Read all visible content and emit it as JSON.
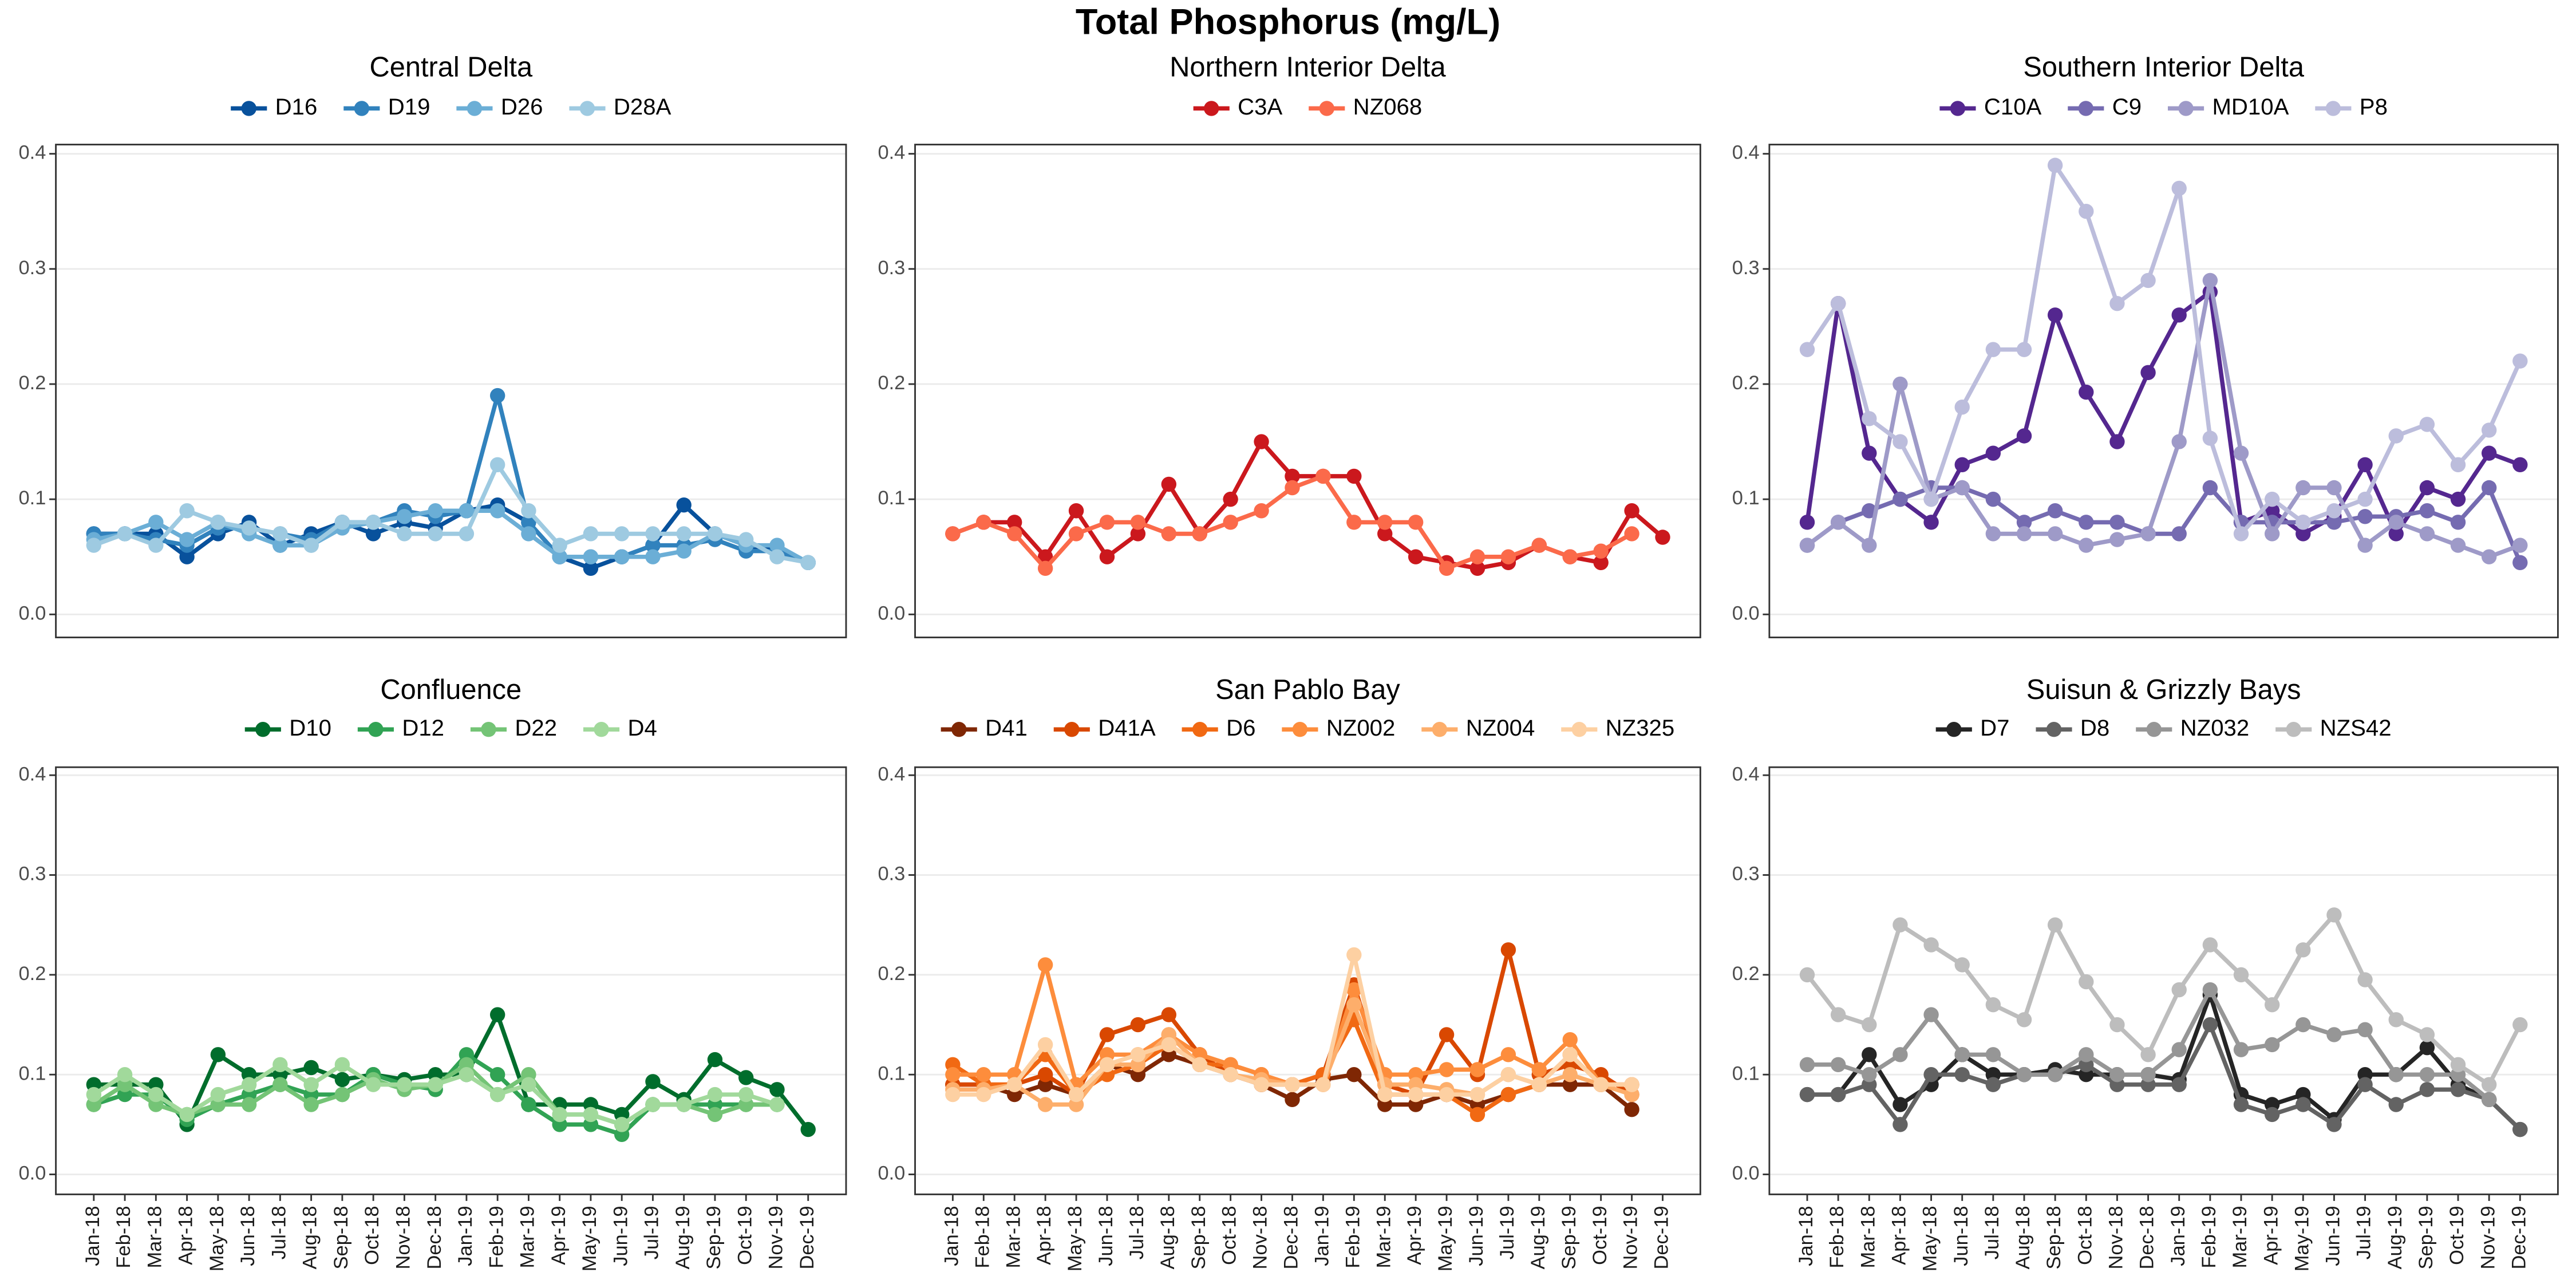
{
  "title": "Total Phosphorus (mg/L)",
  "chart_data": [
    {
      "type": "line",
      "title": "Central Delta",
      "ylim": [
        -0.02,
        0.408
      ],
      "yticks": [
        {
          "value": 0,
          "label": "0.0"
        },
        0.1,
        0.2,
        0.3,
        0.4
      ],
      "grid": true,
      "series": [
        {
          "name": "D16",
          "color": "#08519c",
          "values": [
            0.07,
            0.07,
            0.07,
            0.05,
            0.07,
            0.08,
            0.06,
            0.07,
            0.08,
            0.07,
            0.08,
            0.075,
            0.09,
            0.095,
            0.08,
            0.05,
            0.04,
            0.05,
            0.06,
            0.095,
            0.07,
            0.06,
            0.055,
            0.045
          ]
        },
        {
          "name": "D19",
          "color": "#3182bd",
          "values": [
            0.07,
            0.07,
            0.065,
            0.06,
            0.075,
            0.075,
            0.07,
            0.065,
            0.08,
            0.08,
            0.09,
            0.085,
            0.09,
            0.19,
            0.08,
            0.05,
            0.05,
            0.05,
            0.06,
            0.06,
            0.065,
            0.055,
            0.055,
            0.045
          ]
        },
        {
          "name": "D26",
          "color": "#6baed6",
          "values": [
            0.065,
            0.07,
            0.08,
            0.065,
            0.08,
            0.07,
            0.06,
            0.06,
            0.075,
            0.08,
            0.085,
            0.09,
            0.09,
            0.09,
            0.07,
            0.05,
            0.05,
            0.05,
            0.05,
            0.055,
            0.07,
            0.06,
            0.06,
            0.045
          ]
        },
        {
          "name": "D28A",
          "color": "#9ecae1",
          "values": [
            0.06,
            0.07,
            0.06,
            0.09,
            0.08,
            0.075,
            0.07,
            0.06,
            0.08,
            0.08,
            0.07,
            0.07,
            0.07,
            0.13,
            0.09,
            0.06,
            0.07,
            0.07,
            0.07,
            0.07,
            0.07,
            0.065,
            0.05,
            0.045
          ]
        }
      ]
    },
    {
      "type": "line",
      "title": "Northern Interior Delta",
      "ylim": [
        -0.02,
        0.408
      ],
      "yticks": [
        {
          "value": 0,
          "label": "0.0"
        },
        0.1,
        0.2,
        0.3,
        0.4
      ],
      "grid": true,
      "series": [
        {
          "name": "C3A",
          "color": "#cb181d",
          "values": [
            0.07,
            0.08,
            0.08,
            0.05,
            0.09,
            0.05,
            0.07,
            0.113,
            0.07,
            0.1,
            0.15,
            0.12,
            0.12,
            0.12,
            0.07,
            0.05,
            0.045,
            0.04,
            0.045,
            0.06,
            0.05,
            0.045,
            0.09,
            0.067
          ]
        },
        {
          "name": "NZ068",
          "color": "#fb6a4a",
          "values": [
            0.07,
            0.08,
            0.07,
            0.04,
            0.07,
            0.08,
            0.08,
            0.07,
            0.07,
            0.08,
            0.09,
            0.11,
            0.12,
            0.08,
            0.08,
            0.08,
            0.04,
            0.05,
            0.05,
            0.06,
            0.05,
            0.055,
            0.07,
            null
          ]
        }
      ]
    },
    {
      "type": "line",
      "title": "Southern Interior Delta",
      "ylim": [
        -0.02,
        0.408
      ],
      "yticks": [
        {
          "value": 0,
          "label": "0.0"
        },
        0.1,
        0.2,
        0.3,
        0.4
      ],
      "grid": true,
      "series": [
        {
          "name": "C10A",
          "color": "#54278f",
          "values": [
            0.08,
            0.27,
            0.14,
            0.1,
            0.08,
            0.13,
            0.14,
            0.155,
            0.26,
            0.193,
            0.15,
            0.21,
            0.26,
            0.28,
            0.08,
            0.09,
            0.07,
            0.085,
            0.13,
            0.07,
            0.11,
            0.1,
            0.14,
            0.13
          ]
        },
        {
          "name": "C9",
          "color": "#756bb1",
          "values": [
            0.06,
            0.08,
            0.09,
            0.1,
            0.11,
            0.11,
            0.1,
            0.08,
            0.09,
            0.08,
            0.08,
            0.07,
            0.07,
            0.11,
            0.08,
            0.08,
            0.08,
            0.08,
            0.085,
            0.085,
            0.09,
            0.08,
            0.11,
            0.045
          ]
        },
        {
          "name": "MD10A",
          "color": "#9e9ac8",
          "values": [
            0.06,
            0.08,
            0.06,
            0.2,
            0.1,
            0.11,
            0.07,
            0.07,
            0.07,
            0.06,
            0.065,
            0.07,
            0.15,
            0.29,
            0.14,
            0.07,
            0.11,
            0.11,
            0.06,
            0.08,
            0.07,
            0.06,
            0.05,
            0.06
          ]
        },
        {
          "name": "P8",
          "color": "#bcbddc",
          "values": [
            0.23,
            0.27,
            0.17,
            0.15,
            0.1,
            0.18,
            0.23,
            0.23,
            0.39,
            0.35,
            0.27,
            0.29,
            0.37,
            0.153,
            0.07,
            0.1,
            0.08,
            0.09,
            0.1,
            0.155,
            0.165,
            0.13,
            0.16,
            0.22
          ]
        }
      ]
    },
    {
      "type": "line",
      "title": "Confluence",
      "ylim": [
        -0.02,
        0.408
      ],
      "yticks": [
        {
          "value": 0,
          "label": "0.0"
        },
        0.1,
        0.2,
        0.3,
        0.4
      ],
      "grid": true,
      "categories": [
        "Jan-18",
        "Feb-18",
        "Mar-18",
        "Apr-18",
        "May-18",
        "Jun-18",
        "Jul-18",
        "Aug-18",
        "Sep-18",
        "Oct-18",
        "Nov-18",
        "Dec-18",
        "Jan-19",
        "Feb-19",
        "Mar-19",
        "Apr-19",
        "May-19",
        "Jun-19",
        "Jul-19",
        "Aug-19",
        "Sep-19",
        "Oct-19",
        "Nov-19",
        "Dec-19"
      ],
      "series": [
        {
          "name": "D10",
          "color": "#006d2c",
          "values": [
            0.09,
            0.09,
            0.09,
            0.05,
            0.12,
            0.1,
            0.1,
            0.107,
            0.095,
            0.1,
            0.095,
            0.1,
            0.1,
            0.16,
            0.07,
            0.07,
            0.07,
            0.06,
            0.093,
            0.075,
            0.115,
            0.097,
            0.085,
            0.045
          ]
        },
        {
          "name": "D12",
          "color": "#31a354",
          "values": [
            0.07,
            0.08,
            0.08,
            0.055,
            0.07,
            0.08,
            0.09,
            0.08,
            0.08,
            0.1,
            0.09,
            0.085,
            0.12,
            0.1,
            0.07,
            0.05,
            0.05,
            0.04,
            0.07,
            0.07,
            0.07,
            0.07,
            0.07,
            null
          ]
        },
        {
          "name": "D22",
          "color": "#74c476",
          "values": [
            0.07,
            0.09,
            0.07,
            0.06,
            0.07,
            0.07,
            0.09,
            0.07,
            0.08,
            0.095,
            0.085,
            0.09,
            0.11,
            0.08,
            0.1,
            0.06,
            0.06,
            0.05,
            0.07,
            0.07,
            0.06,
            0.07,
            0.07,
            null
          ]
        },
        {
          "name": "D4",
          "color": "#a1d99b",
          "values": [
            0.08,
            0.1,
            0.08,
            0.06,
            0.08,
            0.09,
            0.11,
            0.09,
            0.11,
            0.09,
            0.09,
            0.09,
            0.1,
            0.08,
            0.09,
            0.06,
            0.06,
            0.05,
            0.07,
            0.07,
            0.08,
            0.08,
            0.07,
            null
          ]
        }
      ]
    },
    {
      "type": "line",
      "title": "San Pablo Bay",
      "ylim": [
        -0.02,
        0.408
      ],
      "yticks": [
        {
          "value": 0,
          "label": "0.0"
        },
        0.1,
        0.2,
        0.3,
        0.4
      ],
      "grid": true,
      "categories": [
        "Jan-18",
        "Feb-18",
        "Mar-18",
        "Apr-18",
        "May-18",
        "Jun-18",
        "Jul-18",
        "Aug-18",
        "Sep-18",
        "Oct-18",
        "Nov-18",
        "Dec-18",
        "Jan-19",
        "Feb-19",
        "Mar-19",
        "Apr-19",
        "May-19",
        "Jun-19",
        "Jul-19",
        "Aug-19",
        "Sep-19",
        "Oct-19",
        "Nov-19",
        "Dec-19"
      ],
      "series": [
        {
          "name": "D41",
          "color": "#7f2704",
          "values": [
            0.09,
            0.09,
            0.08,
            0.09,
            0.08,
            0.11,
            0.1,
            0.12,
            0.11,
            0.1,
            0.09,
            0.075,
            0.095,
            0.1,
            0.07,
            0.07,
            0.08,
            0.07,
            0.08,
            0.09,
            0.09,
            0.09,
            0.065,
            null
          ]
        },
        {
          "name": "D41A",
          "color": "#d94801",
          "values": [
            0.09,
            0.09,
            0.09,
            0.1,
            0.08,
            0.14,
            0.15,
            0.16,
            0.12,
            0.1,
            0.09,
            0.09,
            0.1,
            0.19,
            0.09,
            0.08,
            0.14,
            0.1,
            0.225,
            0.1,
            0.11,
            0.1,
            0.08,
            null
          ]
        },
        {
          "name": "D6",
          "color": "#f16913",
          "values": [
            0.11,
            0.09,
            0.09,
            0.12,
            0.08,
            0.1,
            0.11,
            0.13,
            0.11,
            0.11,
            0.1,
            0.09,
            0.1,
            0.155,
            0.08,
            0.08,
            0.08,
            0.06,
            0.08,
            0.09,
            0.12,
            0.09,
            0.09,
            null
          ]
        },
        {
          "name": "NZ002",
          "color": "#fd8d3c",
          "values": [
            0.1,
            0.1,
            0.1,
            0.21,
            0.09,
            0.12,
            0.12,
            0.14,
            0.12,
            0.11,
            0.1,
            0.09,
            0.09,
            0.185,
            0.1,
            0.1,
            0.105,
            0.105,
            0.12,
            0.105,
            0.135,
            0.09,
            0.09,
            null
          ]
        },
        {
          "name": "NZ004",
          "color": "#fdae6b",
          "values": [
            0.085,
            0.085,
            0.09,
            0.07,
            0.07,
            0.11,
            0.11,
            0.14,
            0.11,
            0.1,
            0.095,
            0.09,
            0.09,
            0.17,
            0.09,
            0.09,
            0.085,
            0.08,
            0.1,
            0.09,
            0.1,
            0.09,
            0.08,
            null
          ]
        },
        {
          "name": "NZ325",
          "color": "#fdd0a2",
          "values": [
            0.08,
            0.08,
            0.09,
            0.13,
            0.08,
            0.11,
            0.12,
            0.13,
            0.11,
            0.1,
            0.09,
            0.09,
            0.09,
            0.22,
            0.08,
            0.08,
            0.08,
            0.08,
            0.1,
            0.09,
            0.12,
            0.09,
            0.09,
            null
          ]
        }
      ]
    },
    {
      "type": "line",
      "title": "Suisun & Grizzly Bays",
      "ylim": [
        -0.02,
        0.408
      ],
      "yticks": [
        {
          "value": 0,
          "label": "0.0"
        },
        0.1,
        0.2,
        0.3,
        0.4
      ],
      "grid": true,
      "categories": [
        "Jan-18",
        "Feb-18",
        "Mar-18",
        "Apr-18",
        "May-18",
        "Jun-18",
        "Jul-18",
        "Aug-18",
        "Sep-18",
        "Oct-18",
        "Nov-18",
        "Dec-18",
        "Jan-19",
        "Feb-19",
        "Mar-19",
        "Apr-19",
        "May-19",
        "Jun-19",
        "Jul-19",
        "Aug-19",
        "Sep-19",
        "Oct-19",
        "Nov-19",
        "Dec-19"
      ],
      "series": [
        {
          "name": "D7",
          "color": "#252525",
          "values": [
            0.08,
            0.08,
            0.12,
            0.07,
            0.09,
            0.12,
            0.1,
            0.1,
            0.105,
            0.1,
            0.1,
            0.1,
            0.095,
            0.18,
            0.08,
            0.07,
            0.08,
            0.055,
            0.1,
            0.1,
            0.127,
            0.09,
            0.075,
            0.045
          ]
        },
        {
          "name": "D8",
          "color": "#636363",
          "values": [
            0.08,
            0.08,
            0.09,
            0.05,
            0.1,
            0.1,
            0.09,
            0.1,
            0.1,
            0.11,
            0.09,
            0.09,
            0.09,
            0.15,
            0.07,
            0.06,
            0.07,
            0.05,
            0.09,
            0.07,
            0.085,
            0.085,
            0.075,
            0.045
          ]
        },
        {
          "name": "NZ032",
          "color": "#969696",
          "values": [
            0.11,
            0.11,
            0.1,
            0.12,
            0.16,
            0.12,
            0.12,
            0.1,
            0.1,
            0.12,
            0.1,
            0.1,
            0.125,
            0.185,
            0.125,
            0.13,
            0.15,
            0.14,
            0.145,
            0.1,
            0.1,
            0.1,
            0.075,
            null
          ]
        },
        {
          "name": "NZS42",
          "color": "#bdbdbd",
          "values": [
            0.2,
            0.16,
            0.15,
            0.25,
            0.23,
            0.21,
            0.17,
            0.155,
            0.25,
            0.193,
            0.15,
            0.12,
            0.185,
            0.23,
            0.2,
            0.17,
            0.225,
            0.26,
            0.195,
            0.155,
            0.14,
            0.11,
            0.09,
            0.15
          ]
        }
      ]
    }
  ]
}
